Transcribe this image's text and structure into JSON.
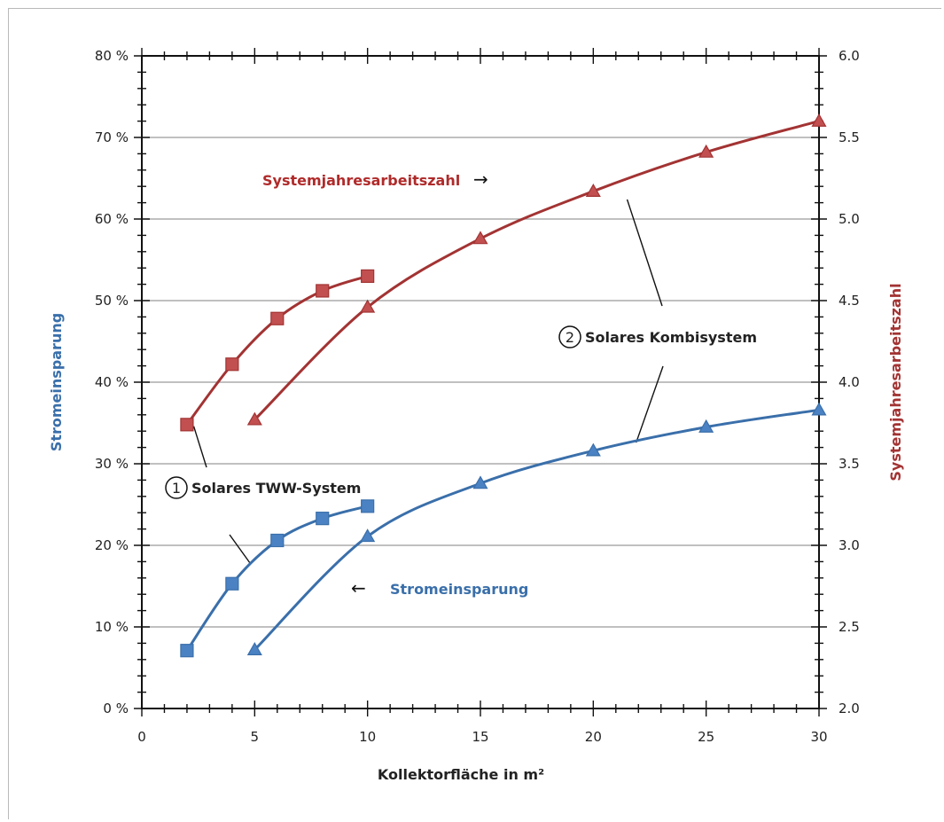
{
  "chart_data": {
    "type": "line",
    "xlabel": "Kollektorfläche in m²",
    "ylabel_left": "Stromeinsparung",
    "ylabel_right": "Systemjahresarbeitszahl",
    "xlim": [
      0,
      30
    ],
    "ylim_left": [
      0,
      80
    ],
    "ylim_right": [
      2.0,
      6.0
    ],
    "x_ticks": [
      "0",
      "5",
      "10",
      "15",
      "20",
      "25",
      "30"
    ],
    "y_left_ticks": [
      "0 %",
      "10 %",
      "20 %",
      "30 %",
      "40 %",
      "50 %",
      "60 %",
      "70 %",
      "80 %"
    ],
    "y_right_ticks": [
      "2.0",
      "2.5",
      "3.0",
      "3.5",
      "4.0",
      "4.5",
      "5.0",
      "5.5",
      "6.0"
    ],
    "grid": "horizontal",
    "colors": {
      "blue": "#3a6faa",
      "red": "#a33333",
      "marker_blue": "#4b82c4",
      "marker_red": "#c25050"
    },
    "series": [
      {
        "axis": "left",
        "marker": "square",
        "color": "blue",
        "x": [
          2,
          4,
          6,
          8,
          10
        ],
        "y": [
          7.1,
          15.3,
          20.6,
          23.3,
          24.8
        ]
      },
      {
        "axis": "left",
        "marker": "triangle",
        "color": "blue",
        "x": [
          5,
          10,
          15,
          20,
          25,
          30
        ],
        "y": [
          7.2,
          21.1,
          27.6,
          31.6,
          34.5,
          36.6
        ]
      },
      {
        "axis": "right",
        "marker": "square",
        "color": "red",
        "x": [
          2,
          4,
          6,
          8,
          10
        ],
        "y": [
          3.74,
          4.11,
          4.39,
          4.56,
          4.65
        ]
      },
      {
        "axis": "right",
        "marker": "triangle",
        "color": "red",
        "x": [
          5,
          10,
          15,
          20,
          25,
          30
        ],
        "y": [
          3.77,
          4.46,
          4.88,
          5.17,
          5.41,
          5.6
        ]
      }
    ],
    "annotations": {
      "system1_number": "1",
      "system1_label": "Solares TWW-System",
      "system2_number": "2",
      "system2_label": "Solares Kombisystem",
      "sjaz_label": "Systemjahresarbeitszahl",
      "sjaz_arrow": "→",
      "strom_label": "Stromeinsparung",
      "strom_arrow": "←"
    }
  }
}
